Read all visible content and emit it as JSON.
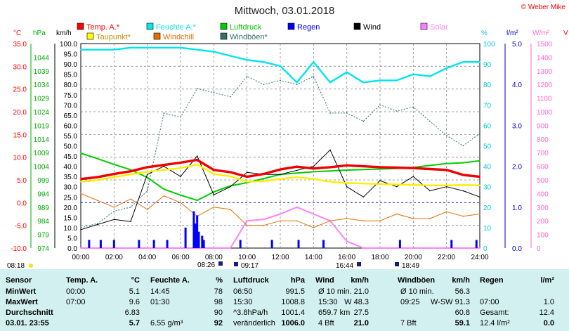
{
  "title": "Mittwoch, 03.01.2018",
  "copyright": "© Weber Mike",
  "legend": [
    {
      "label": "Temp. A.*",
      "color": "#ff0000"
    },
    {
      "label": "Feuchte A.*",
      "color": "#00e5ee"
    },
    {
      "label": "Luftdruck",
      "color": "#00cc00"
    },
    {
      "label": "Regen",
      "color": "#0000ff"
    },
    {
      "label": "Wind",
      "color": "#000000"
    },
    {
      "label": "Solar",
      "color": "#ff80ff"
    },
    {
      "label": "Taupunkt*",
      "color": "#ffff00"
    },
    {
      "label": "Windchill",
      "color": "#e07000"
    },
    {
      "label": "Windböen*",
      "color": "#2f6f6f"
    }
  ],
  "axis_units": {
    "temp": "°C",
    "press": "hPa",
    "wind": "km/h",
    "hum": "%",
    "rain": "l/m²",
    "solar": "W/m²",
    "right_cut": "V"
  },
  "axes": {
    "temp_ticks": [
      "35.0",
      "30.0",
      "25.0",
      "20.0",
      "15.0",
      "10.0",
      "5.0",
      "0.0",
      "-5.0",
      "-10.0"
    ],
    "press_ticks": [
      "1044",
      "1039",
      "1034",
      "1029",
      "1024",
      "1019",
      "1014",
      "1009",
      "1004",
      "999",
      "994",
      "989",
      "984",
      "979",
      "974"
    ],
    "wind_ticks": [
      "100.0",
      "95.0",
      "90.0",
      "85.0",
      "80.0",
      "75.0",
      "70.0",
      "65.0",
      "60.0",
      "55.0",
      "50.0",
      "45.0",
      "40.0",
      "35.0",
      "30.0",
      "25.0",
      "20.0",
      "15.0",
      "10.0",
      "5.0",
      "0.0"
    ],
    "hum_ticks": [
      "100",
      "90",
      "80",
      "70",
      "60",
      "50",
      "40",
      "30",
      "20",
      "10",
      "0"
    ],
    "rain_ticks": [
      "5.0",
      "4.0",
      "3.0",
      "2.0",
      "1.0",
      "0.0"
    ],
    "solar_ticks": [
      "1500",
      "1400",
      "1300",
      "1200",
      "1100",
      "1000",
      "900",
      "800",
      "700",
      "600",
      "500",
      "400",
      "300",
      "200",
      "100",
      "0"
    ],
    "time_ticks": [
      "00:00",
      "02:00",
      "04:00",
      "06:00",
      "08:00",
      "10:00",
      "12:00",
      "14:00",
      "16:00",
      "18:00",
      "20:00",
      "22:00",
      "24:00"
    ]
  },
  "sun_events": {
    "sunrise": "08:18",
    "events": [
      "08:26",
      "09:17",
      "16:44",
      "18:49"
    ]
  },
  "chart_data": {
    "type": "line",
    "title": "Mittwoch, 03.01.2018",
    "x": [
      0,
      1,
      2,
      3,
      4,
      5,
      6,
      7,
      8,
      9,
      10,
      11,
      12,
      13,
      14,
      15,
      16,
      17,
      18,
      19,
      20,
      21,
      22,
      23,
      24
    ],
    "series": [
      {
        "name": "Temp. A.*",
        "axis": "°C",
        "values": [
          5.2,
          5.6,
          6.3,
          6.9,
          7.8,
          8.3,
          8.8,
          9.4,
          7.2,
          6.7,
          5.7,
          6.3,
          7.3,
          7.9,
          7.5,
          7.8,
          8.2,
          8.0,
          7.8,
          7.7,
          7.6,
          7.4,
          7.2,
          6.1,
          5.7
        ]
      },
      {
        "name": "Taupunkt*",
        "axis": "°C",
        "values": [
          4.6,
          4.9,
          5.6,
          6.2,
          6.8,
          7.2,
          7.6,
          8.4,
          6.3,
          5.8,
          4.6,
          4.7,
          5.2,
          5.6,
          5.2,
          4.6,
          4.3,
          4.2,
          4.1,
          4.0,
          3.9,
          3.8,
          3.8,
          3.9,
          3.8
        ]
      },
      {
        "name": "Windchill",
        "axis": "°C",
        "values": [
          2.0,
          0.5,
          -1.0,
          0.8,
          -1.5,
          1.5,
          0.0,
          -3.0,
          -1.0,
          -1.5,
          -5.0,
          -5.0,
          -4.0,
          -4.0,
          -5.5,
          -4.0,
          -3.5,
          -4.0,
          -4.0,
          -2.5,
          -3.5,
          -3.5,
          -2.0,
          -3.0,
          -2.5
        ]
      },
      {
        "name": "Feuchte A.*",
        "axis": "%",
        "values": [
          97,
          97,
          97,
          98,
          98,
          98,
          98,
          97,
          96,
          94,
          92,
          91,
          89,
          81,
          91,
          81,
          86,
          81,
          82,
          82,
          85,
          84,
          88,
          91,
          91
        ]
      },
      {
        "name": "Luftdruck",
        "axis": "hPa",
        "values": [
          1008.8,
          1006.8,
          1004.7,
          1002.7,
          999.9,
          995.6,
          993.4,
          991.5,
          994.6,
          996.8,
          998.0,
          999.5,
          1001.0,
          1001.5,
          1002.0,
          1002.3,
          1002.6,
          1002.8,
          1003.0,
          1003.2,
          1003.6,
          1004.3,
          1005.0,
          1005.3,
          1006.0
        ]
      },
      {
        "name": "Wind",
        "axis": "km/h",
        "values": [
          9.0,
          11.5,
          14.0,
          13.0,
          36.0,
          40.0,
          35.0,
          45.0,
          26.0,
          30.0,
          37.0,
          36.0,
          36.0,
          38.0,
          40.0,
          48.0,
          30.0,
          25.0,
          33.0,
          30.0,
          35.0,
          28.0,
          30.0,
          28.0,
          25.0
        ]
      },
      {
        "name": "Windböen*",
        "axis": "km/h",
        "values": [
          10.0,
          12.0,
          18.0,
          20.0,
          28.0,
          66.0,
          64.0,
          78.0,
          76.0,
          74.0,
          84.0,
          80.0,
          82.0,
          80.0,
          84.0,
          66.0,
          66.0,
          62.0,
          70.0,
          67.0,
          69.0,
          62.0,
          55.0,
          50.0,
          56.0
        ]
      },
      {
        "name": "Solar",
        "axis": "W/m²",
        "values": [
          0,
          0,
          0,
          0,
          0,
          0,
          0,
          0,
          0,
          0,
          200,
          210,
          250,
          300,
          250,
          200,
          50,
          0,
          0,
          0,
          0,
          0,
          0,
          0,
          0
        ]
      }
    ],
    "rain_x": [
      0.5,
      1.2,
      2.0,
      3.5,
      4.4,
      5.2,
      6.3,
      6.8,
      6.9,
      7.0,
      7.1,
      7.3,
      7.4,
      9.6,
      11.5,
      13.1,
      14.6,
      19.2,
      22.3,
      23.8
    ],
    "rain_values": [
      0.2,
      0.2,
      0.2,
      0.2,
      0.2,
      0.2,
      0.5,
      0.9,
      0.6,
      0.8,
      0.4,
      0.3,
      0.2,
      0.2,
      0.2,
      0.2,
      0.2,
      0.2,
      0.2,
      0.2
    ],
    "ylim": [
      -10,
      35
    ],
    "xlim": [
      0,
      24
    ],
    "grid": true
  },
  "table": {
    "headers": [
      "Sensor",
      "Temp. A.",
      "°C",
      "Feuchte A.",
      "%",
      "Luftdruck",
      "hPa",
      "Wind",
      "km/h",
      "Windböen",
      "km/h",
      "Regen",
      "l/m²"
    ],
    "rows": [
      {
        "label": "MinWert",
        "cells": [
          "00:00",
          "5.1",
          "14:45",
          "78",
          "06:50",
          "991.5",
          "Ø 10 min.",
          "21.0",
          "Ø 10 min.",
          "56.3",
          "",
          ""
        ]
      },
      {
        "label": "MaxWert",
        "cells": [
          "07:00",
          "9.6",
          "01:30",
          "98",
          "15:30",
          "1008.8",
          "15:30",
          "W 48.3",
          "09:25",
          "W-SW 91.3",
          "07:00",
          "1.0"
        ]
      },
      {
        "label": "Durchschnitt",
        "cells": [
          "",
          "6.83",
          "",
          "90",
          "^3.8hPa/h",
          "1001.4",
          "659.7 km",
          "27.5",
          "",
          "60.8",
          "Gesamt:",
          "12.4"
        ]
      },
      {
        "label": "03.01. 23:55",
        "cells": [
          "",
          "5.7",
          "6.55 g/m³",
          "92",
          "veränderlich",
          "1006.0",
          "4 Bft",
          "21.0",
          "7 Bft",
          "59.1",
          "12.4 l/m²",
          "0.0"
        ]
      }
    ]
  }
}
